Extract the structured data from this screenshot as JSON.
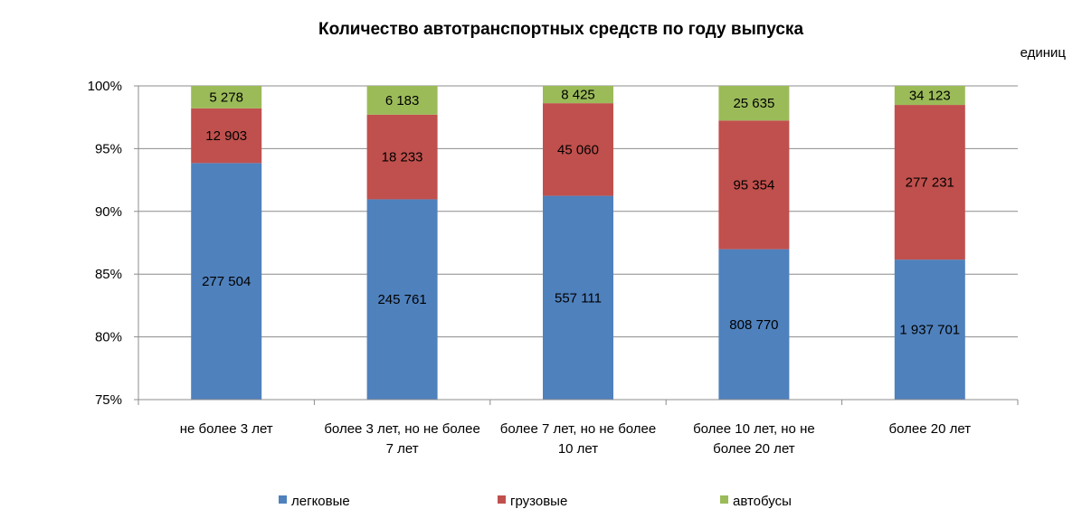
{
  "chart_data": {
    "type": "bar",
    "stacked": "percent",
    "title": "Количество автотранспортных средств по году выпуска",
    "unit": "единиц",
    "categories": [
      [
        "не более 3 лет"
      ],
      [
        "более 3 лет, но не более",
        "7 лет"
      ],
      [
        "более 7 лет, но не более",
        "10 лет"
      ],
      [
        "более 10 лет, но не",
        "более 20 лет"
      ],
      [
        "более 20 лет"
      ]
    ],
    "series": [
      {
        "name": "легковые",
        "color": "#4F81BD",
        "values": [
          277504,
          245761,
          557111,
          808770,
          1937701
        ],
        "labels": [
          "277 504",
          "245 761",
          "557 111",
          "808 770",
          "1 937 701"
        ]
      },
      {
        "name": "грузовые",
        "color": "#C0504D",
        "values": [
          12903,
          18233,
          45060,
          95354,
          277231
        ],
        "labels": [
          "12 903",
          "18 233",
          "45 060",
          "95 354",
          "277 231"
        ]
      },
      {
        "name": "автобусы",
        "color": "#9BBB59",
        "values": [
          5278,
          6183,
          8425,
          25635,
          34123
        ],
        "labels": [
          "5 278",
          "6 183",
          "8 425",
          "25 635",
          "34 123"
        ]
      }
    ],
    "y_axis": {
      "range_percent": [
        75,
        100
      ],
      "ticks": [
        "75%",
        "80%",
        "85%",
        "90%",
        "95%",
        "100%"
      ],
      "gridlines": true
    },
    "legend": {
      "position": "bottom"
    }
  }
}
